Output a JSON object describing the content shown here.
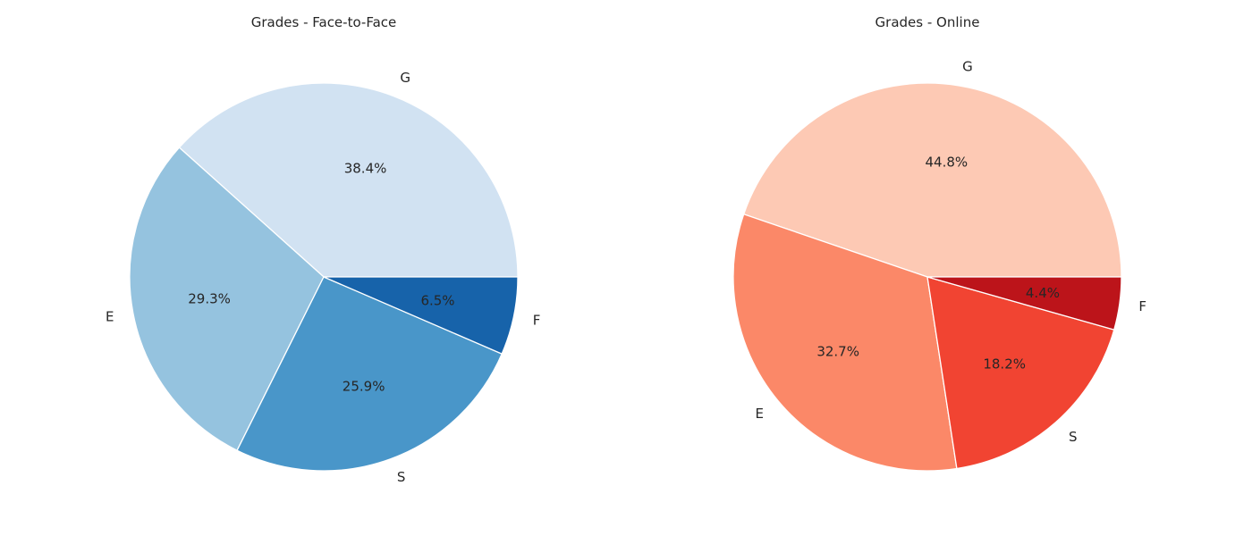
{
  "chart_data": [
    {
      "type": "pie",
      "title": "Grades - Face-to-Face",
      "categories": [
        "G",
        "E",
        "S",
        "F"
      ],
      "values": [
        38.4,
        29.3,
        25.9,
        6.5
      ],
      "value_labels": [
        "38.4%",
        "29.3%",
        "25.9%",
        "6.5%"
      ],
      "colors": [
        "#d1e2f2",
        "#95c3df",
        "#4996c9",
        "#1763aa"
      ],
      "start_angle_deg": 0,
      "direction": "counterclockwise"
    },
    {
      "type": "pie",
      "title": "Grades - Online",
      "categories": [
        "G",
        "E",
        "S",
        "F"
      ],
      "values": [
        44.8,
        32.7,
        18.2,
        4.4
      ],
      "value_labels": [
        "44.8%",
        "32.7%",
        "18.2%",
        "4.4%"
      ],
      "colors": [
        "#fdc9b4",
        "#fb8868",
        "#f14432",
        "#bc141a"
      ],
      "start_angle_deg": 0,
      "direction": "counterclockwise"
    }
  ]
}
